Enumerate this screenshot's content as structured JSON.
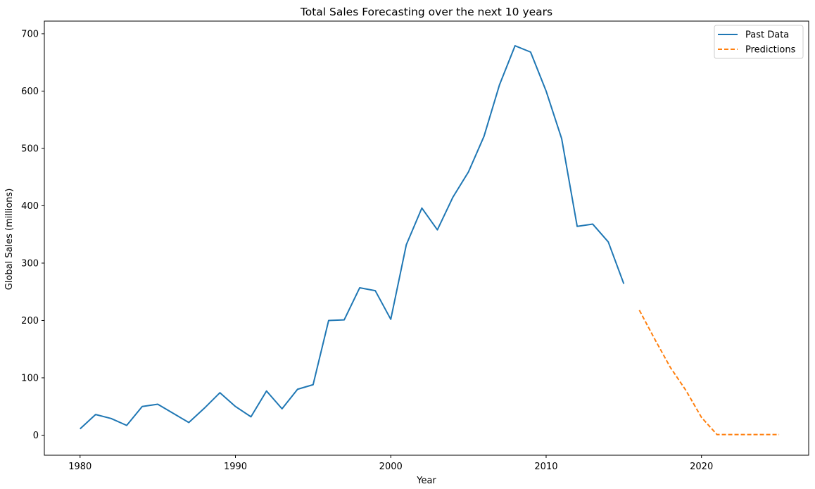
{
  "chart_data": {
    "type": "line",
    "title": "Total Sales Forecasting over the next 10 years",
    "xlabel": "Year",
    "ylabel": "Global Sales (millions)",
    "xlim": [
      1977.7,
      2026.9
    ],
    "ylim": [
      -35,
      722
    ],
    "xticks": [
      1980,
      1990,
      2000,
      2010,
      2020
    ],
    "yticks": [
      0,
      100,
      200,
      300,
      400,
      500,
      600,
      700
    ],
    "grid": false,
    "legend_position": "top-right",
    "series": [
      {
        "name": "Past Data",
        "color": "#1f77b4",
        "style": "solid",
        "x": [
          1980,
          1981,
          1982,
          1983,
          1984,
          1985,
          1986,
          1987,
          1988,
          1989,
          1990,
          1991,
          1992,
          1993,
          1994,
          1995,
          1996,
          1997,
          1998,
          1999,
          2000,
          2001,
          2002,
          2003,
          2004,
          2005,
          2006,
          2007,
          2008,
          2009,
          2010,
          2011,
          2012,
          2013,
          2014,
          2015
        ],
        "y": [
          11,
          36,
          29,
          17,
          50,
          54,
          38,
          22,
          47,
          74,
          50,
          32,
          77,
          46,
          80,
          88,
          200,
          201,
          257,
          252,
          202,
          332,
          396,
          358,
          415,
          459,
          521,
          611,
          679,
          668,
          600,
          517,
          364,
          368,
          337,
          264
        ]
      },
      {
        "name": "Predictions",
        "color": "#ff7f0e",
        "style": "dashed",
        "x": [
          2016,
          2017,
          2018,
          2019,
          2020,
          2021,
          2022,
          2023,
          2024,
          2025
        ],
        "y": [
          218,
          167,
          118,
          78,
          31,
          1,
          1,
          1,
          1,
          1
        ]
      }
    ]
  }
}
